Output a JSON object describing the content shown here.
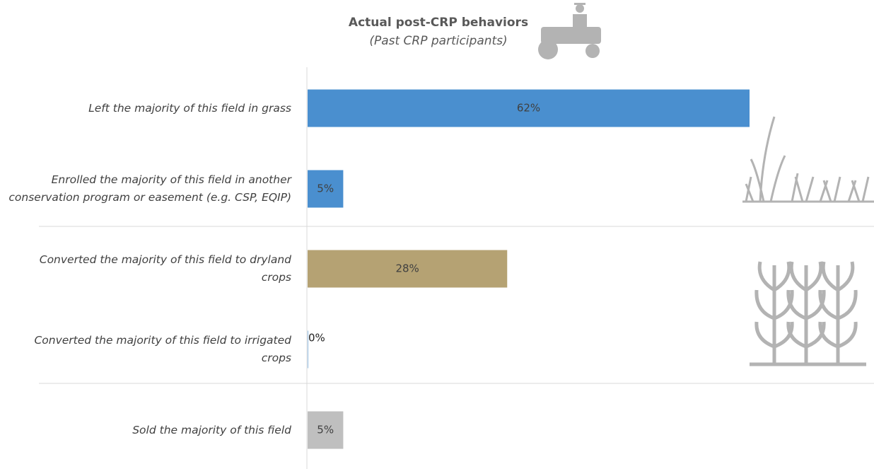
{
  "chart_data": {
    "type": "bar",
    "orientation": "horizontal",
    "title": "Actual post-CRP behaviors",
    "subtitle": "(Past CRP participants)",
    "categories": [
      "Left the majority of this field in grass",
      "Enrolled the majority of this field in another conservation program or easement (e.g. CSP, EQIP)",
      "Converted the majority of this field to dryland crops",
      "Converted the majority of this field to irrigated crops",
      "Sold the majority of this field"
    ],
    "values": [
      62,
      5,
      28,
      0,
      5
    ],
    "value_labels": [
      "62%",
      "5%",
      "28%",
      "0%",
      "5%"
    ],
    "colors": [
      "#4a8fcf",
      "#4a8fcf",
      "#b5a273",
      "#4a8fcf",
      "#bfbfbf"
    ]
  }
}
